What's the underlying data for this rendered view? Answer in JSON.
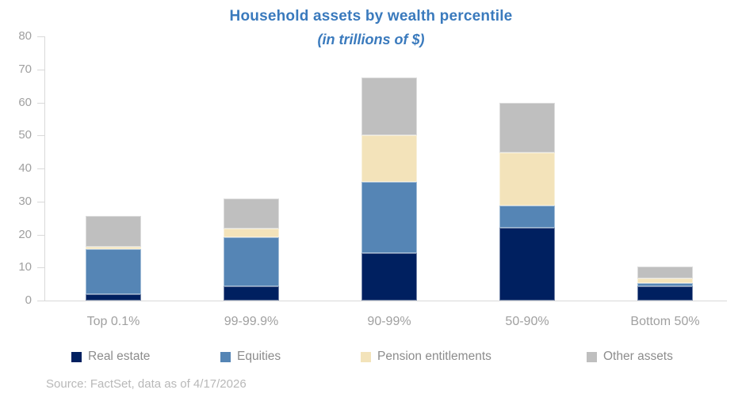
{
  "chart_data": {
    "type": "bar",
    "stacked": true,
    "title": "Household assets by wealth percentile",
    "subtitle": "(in trillions of $)",
    "categories": [
      "Top 0.1%",
      "99-99.9%",
      "90-99%",
      "50-90%",
      "Bottom 50%"
    ],
    "series": [
      {
        "name": "Real estate",
        "color": "#002060",
        "values": [
          2.0,
          4.4,
          14.4,
          22.1,
          4.4
        ]
      },
      {
        "name": "Equities",
        "color": "#5585B5",
        "values": [
          13.6,
          14.8,
          21.5,
          6.6,
          0.8
        ]
      },
      {
        "name": "Pension entitlements",
        "color": "#F3E3BA",
        "values": [
          0.7,
          2.5,
          14.2,
          16.0,
          1.6
        ]
      },
      {
        "name": "Other assets",
        "color": "#BFBFBF",
        "values": [
          9.3,
          9.2,
          17.5,
          15.2,
          3.6
        ]
      }
    ],
    "totals": [
      25.6,
      30.9,
      67.6,
      59.9,
      10.4
    ],
    "ylim": [
      0,
      80
    ],
    "yticks": [
      0,
      10,
      20,
      30,
      40,
      50,
      60,
      70,
      80
    ],
    "grid": false,
    "legend_position": "bottom",
    "source": "Source: FactSet, data as of 4/17/2026",
    "colors": {
      "title": "#3A7ABD",
      "axis_label": "#A0A0A0",
      "category_label": "#A0A0A0",
      "legend_text": "#8C8C8C",
      "source_text": "#B8B8B8",
      "axis_line": "#D9D9D9"
    }
  }
}
